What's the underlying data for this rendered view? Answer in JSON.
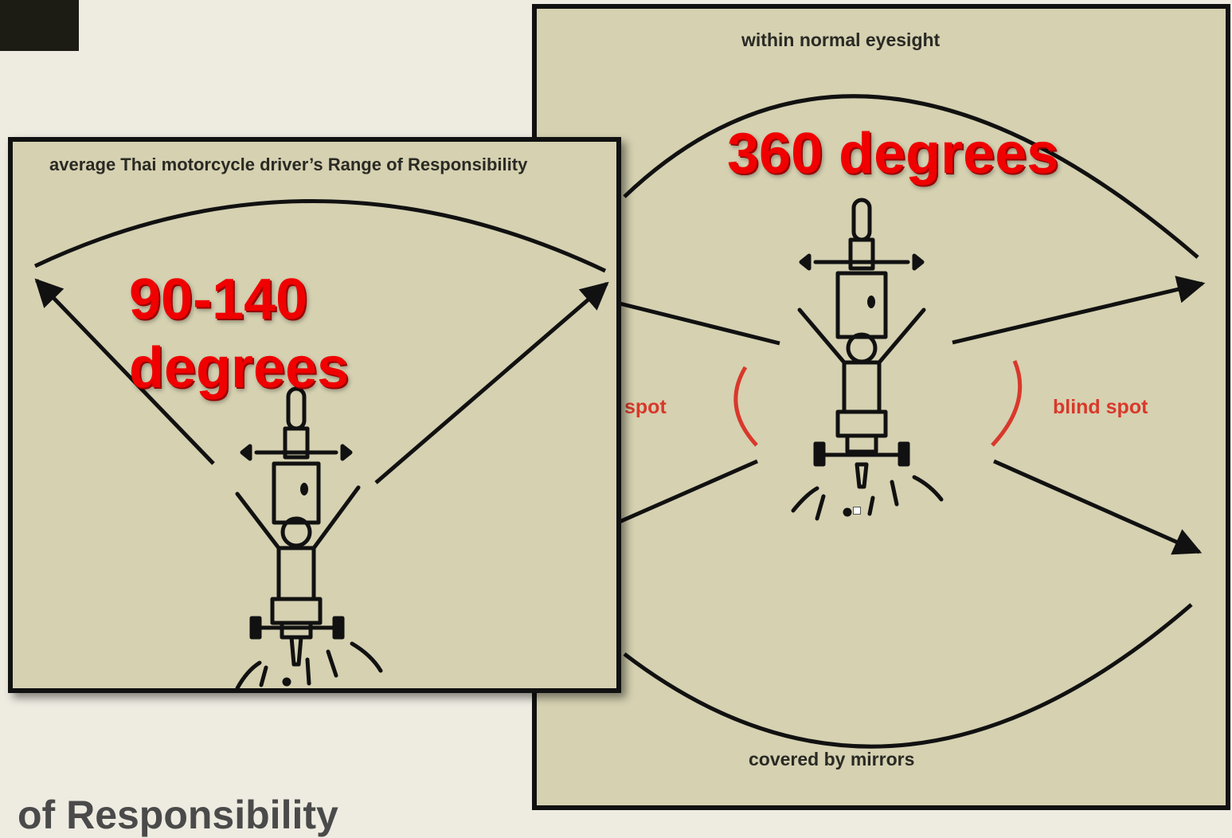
{
  "slide": {
    "bottom_title": "of Responsibility"
  },
  "left_panel": {
    "caption": "average Thai motorcycle driver’s Range of Responsibility",
    "label_lines": [
      "90-140",
      "degrees"
    ]
  },
  "right_panel": {
    "top_caption": "within normal eyesight",
    "bottom_caption": "covered by mirrors",
    "blind_spot_left": "spot",
    "blind_spot_right": "blind spot",
    "label": "360 degrees"
  },
  "colors": {
    "panel_bg": "#d5d1b1",
    "slide_bg": "#eeebe1",
    "label_red": "#f00000",
    "blind_spot_red": "#d9382b"
  }
}
